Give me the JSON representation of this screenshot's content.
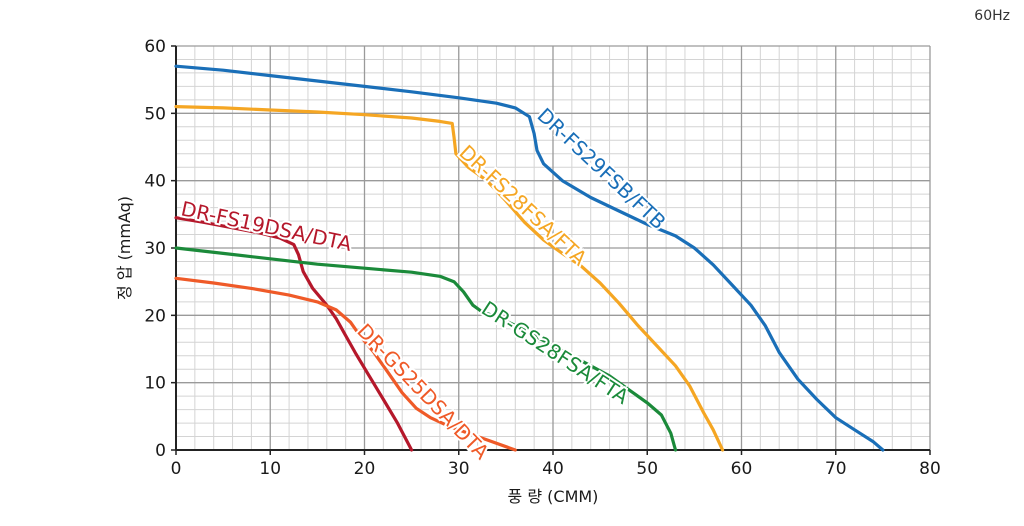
{
  "chart_data": {
    "type": "line",
    "frequency_label": "60Hz",
    "xlabel": "풍 량 (CMM)",
    "ylabel": "정 압 (mmAq)",
    "xlim": [
      0,
      80
    ],
    "ylim": [
      0,
      60
    ],
    "x_ticks": [
      "0",
      "10",
      "20",
      "30",
      "40",
      "50",
      "60",
      "70",
      "80"
    ],
    "y_ticks": [
      "0",
      "10",
      "20",
      "30",
      "40",
      "50",
      "60"
    ],
    "grid": true,
    "series": [
      {
        "name": "DR-FS29FSB/FTB",
        "color": "#1a6fb8",
        "points": [
          [
            0,
            57
          ],
          [
            5,
            56.4
          ],
          [
            10,
            55.6
          ],
          [
            15,
            54.8
          ],
          [
            20,
            54
          ],
          [
            25,
            53.2
          ],
          [
            30,
            52.3
          ],
          [
            34,
            51.5
          ],
          [
            36,
            50.8
          ],
          [
            37.5,
            49.5
          ],
          [
            38,
            47
          ],
          [
            38.3,
            44.5
          ],
          [
            39,
            42.5
          ],
          [
            41,
            40
          ],
          [
            44,
            37.5
          ],
          [
            47,
            35.5
          ],
          [
            50,
            33.5
          ],
          [
            53,
            31.8
          ],
          [
            55,
            30
          ],
          [
            57,
            27.5
          ],
          [
            59,
            24.5
          ],
          [
            61,
            21.5
          ],
          [
            62.5,
            18.5
          ],
          [
            64,
            14.5
          ],
          [
            66,
            10.5
          ],
          [
            68,
            7.5
          ],
          [
            70,
            4.8
          ],
          [
            72,
            3
          ],
          [
            74,
            1.2
          ],
          [
            75,
            0
          ]
        ]
      },
      {
        "name": "DR-FS28FSA/FTA",
        "color": "#f5a623",
        "points": [
          [
            0,
            51
          ],
          [
            5,
            50.8
          ],
          [
            10,
            50.5
          ],
          [
            15,
            50.2
          ],
          [
            20,
            49.8
          ],
          [
            25,
            49.3
          ],
          [
            28,
            48.8
          ],
          [
            29.3,
            48.5
          ],
          [
            29.5,
            46.5
          ],
          [
            29.7,
            44
          ],
          [
            31,
            42
          ],
          [
            33,
            40
          ],
          [
            35,
            37
          ],
          [
            37,
            33.8
          ],
          [
            39,
            31.2
          ],
          [
            41,
            29.2
          ],
          [
            43,
            27.3
          ],
          [
            45,
            24.8
          ],
          [
            47,
            21.8
          ],
          [
            49,
            18.5
          ],
          [
            51,
            15.5
          ],
          [
            53,
            12.5
          ],
          [
            54.5,
            9.5
          ],
          [
            56,
            5.5
          ],
          [
            57,
            3
          ],
          [
            58,
            0
          ]
        ]
      },
      {
        "name": "DR-FS19DSA/DTA",
        "color": "#b5182b",
        "points": [
          [
            0,
            34.5
          ],
          [
            3,
            33.8
          ],
          [
            6,
            33
          ],
          [
            9,
            32.2
          ],
          [
            11,
            31.5
          ],
          [
            12.5,
            30.5
          ],
          [
            13,
            29
          ],
          [
            13.5,
            26.5
          ],
          [
            14.5,
            24
          ],
          [
            16,
            21.5
          ],
          [
            17,
            19.5
          ],
          [
            18,
            17
          ],
          [
            19,
            14.5
          ],
          [
            20.5,
            11
          ],
          [
            22,
            7.5
          ],
          [
            23.5,
            4
          ],
          [
            25,
            0
          ]
        ]
      },
      {
        "name": "DR-GS28FSA/FTA",
        "color": "#1b8a3a",
        "points": [
          [
            0,
            30
          ],
          [
            5,
            29.2
          ],
          [
            10,
            28.4
          ],
          [
            15,
            27.6
          ],
          [
            20,
            27
          ],
          [
            25,
            26.4
          ],
          [
            28,
            25.8
          ],
          [
            29.5,
            25
          ],
          [
            30.5,
            23.5
          ],
          [
            31.5,
            21.5
          ],
          [
            32.5,
            20.5
          ],
          [
            34,
            19.8
          ],
          [
            36,
            18.5
          ],
          [
            38,
            17
          ],
          [
            40,
            15.5
          ],
          [
            42,
            14
          ],
          [
            44,
            12.5
          ],
          [
            46,
            11
          ],
          [
            48,
            9
          ],
          [
            50,
            7
          ],
          [
            51.5,
            5.2
          ],
          [
            52.5,
            2.5
          ],
          [
            53,
            0
          ]
        ]
      },
      {
        "name": "DR-GS25DSA/DTA",
        "color": "#ef5a28",
        "points": [
          [
            0,
            25.5
          ],
          [
            4,
            24.8
          ],
          [
            8,
            24
          ],
          [
            12,
            23
          ],
          [
            15,
            22
          ],
          [
            17,
            20.8
          ],
          [
            18.5,
            19
          ],
          [
            19.5,
            17
          ],
          [
            21,
            14.5
          ],
          [
            22.5,
            11.5
          ],
          [
            24,
            8.5
          ],
          [
            25.5,
            6.2
          ],
          [
            27,
            4.8
          ],
          [
            29,
            3.5
          ],
          [
            31,
            2.5
          ],
          [
            33,
            1.5
          ],
          [
            36,
            0
          ]
        ]
      }
    ]
  }
}
